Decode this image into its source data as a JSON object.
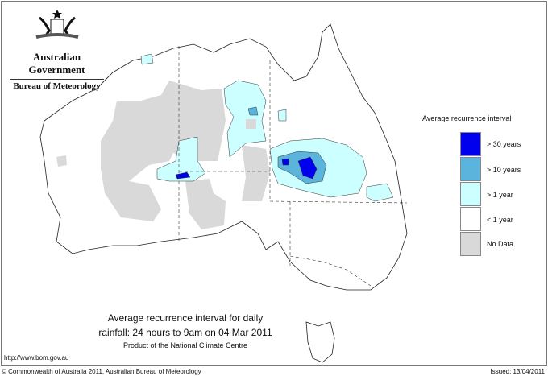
{
  "header": {
    "government": "Australian Government",
    "bureau": "Bureau of Meteorology"
  },
  "legend": {
    "title": "Average recurrence interval",
    "items": [
      {
        "label": "> 30 years",
        "color": "#0000ee"
      },
      {
        "label": "> 10 years",
        "color": "#5ab4dc"
      },
      {
        "label": "> 1 year",
        "color": "#ccffff"
      },
      {
        "label": "< 1 year",
        "color": "#ffffff"
      },
      {
        "label": "No Data",
        "color": "#d9d9d9"
      }
    ]
  },
  "caption": {
    "line1": "Average recurrence interval for daily",
    "line2": "rainfall: 24 hours to 9am on 04 Mar 2011",
    "line3": "Product of the National Climate Centre"
  },
  "footer": {
    "url": "http://www.bom.gov.au",
    "copyright": "© Commonwealth of Australia 2011, Australian Bureau of Meteorology",
    "issued": "Issued: 13/04/2011"
  }
}
